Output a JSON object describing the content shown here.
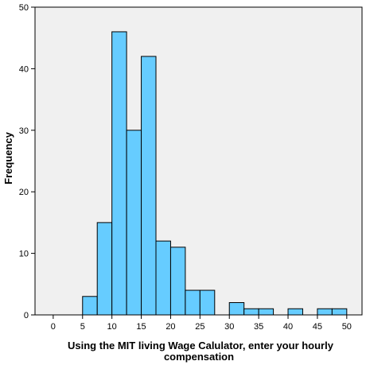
{
  "chart_data": {
    "type": "bar",
    "subtype": "histogram",
    "bins": [
      {
        "from": 5.0,
        "to": 7.5,
        "count": 3
      },
      {
        "from": 7.5,
        "to": 10.0,
        "count": 15
      },
      {
        "from": 10.0,
        "to": 12.5,
        "count": 46
      },
      {
        "from": 12.5,
        "to": 15.0,
        "count": 30
      },
      {
        "from": 15.0,
        "to": 17.5,
        "count": 42
      },
      {
        "from": 17.5,
        "to": 20.0,
        "count": 12
      },
      {
        "from": 20.0,
        "to": 22.5,
        "count": 11
      },
      {
        "from": 22.5,
        "to": 25.0,
        "count": 4
      },
      {
        "from": 25.0,
        "to": 27.5,
        "count": 4
      },
      {
        "from": 30.0,
        "to": 32.5,
        "count": 2
      },
      {
        "from": 32.5,
        "to": 35.0,
        "count": 1
      },
      {
        "from": 35.0,
        "to": 37.5,
        "count": 1
      },
      {
        "from": 40.0,
        "to": 42.5,
        "count": 1
      },
      {
        "from": 45.0,
        "to": 47.5,
        "count": 1
      },
      {
        "from": 47.5,
        "to": 50.0,
        "count": 1
      }
    ],
    "xlabel_line1": "Using the MIT living Wage Calulator, enter your hourly",
    "xlabel_line2": "compensation",
    "ylabel": "Frequency",
    "x_ticks": [
      "0",
      "5",
      "10",
      "15",
      "20",
      "25",
      "30",
      "35",
      "40",
      "45",
      "50"
    ],
    "y_ticks": [
      "0",
      "10",
      "20",
      "30",
      "40",
      "50"
    ],
    "xlim": [
      -3.1,
      52.6
    ],
    "ylim": [
      0,
      50
    ],
    "grid": false,
    "colors": {
      "bar": "#66ccff",
      "plot_background": "#f0f0f0",
      "outline": "#000000"
    }
  }
}
